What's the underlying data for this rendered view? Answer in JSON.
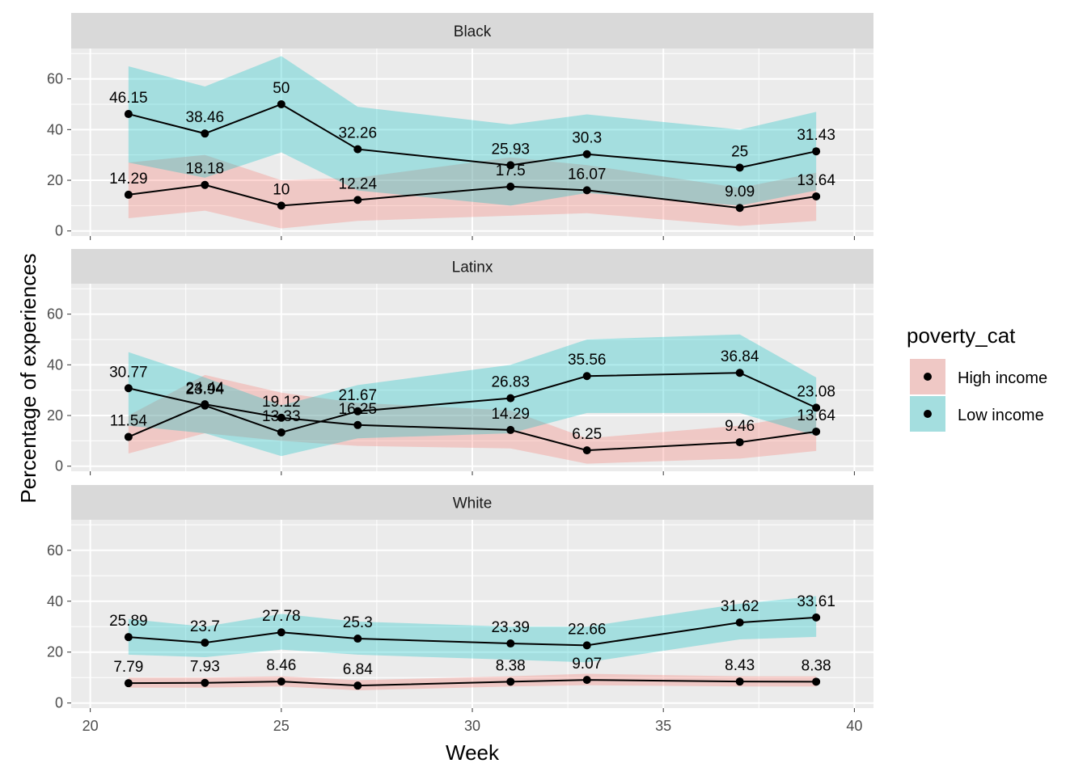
{
  "chart_data": {
    "type": "line",
    "xlabel": "Week",
    "ylabel": "Percentage of experiences",
    "xlim": [
      19.5,
      40.5
    ],
    "ylim": [
      -2,
      72
    ],
    "x_ticks": [
      20,
      25,
      30,
      35,
      40
    ],
    "y_ticks": [
      0,
      20,
      40,
      60
    ],
    "grid": true,
    "facet_by": "race",
    "legend": {
      "title": "poverty_cat",
      "placement": "right",
      "entries": [
        {
          "name": "High income",
          "color": "#F8766D"
        },
        {
          "name": "Low income",
          "color": "#00BFC4"
        }
      ]
    },
    "panels": [
      {
        "name": "Black",
        "series": [
          {
            "name": "High income",
            "points": [
              {
                "x": 21,
                "y": 14.29,
                "label": "14.29",
                "lo": 5,
                "hi": 27
              },
              {
                "x": 23,
                "y": 18.18,
                "label": "18.18",
                "lo": 8,
                "hi": 30
              },
              {
                "x": 25,
                "y": 10,
                "label": "10",
                "lo": 1,
                "hi": 20
              },
              {
                "x": 27,
                "y": 12.24,
                "label": "12.24",
                "lo": 4,
                "hi": 21
              },
              {
                "x": 31,
                "y": 17.5,
                "label": "17.5",
                "lo": 6,
                "hi": 29
              },
              {
                "x": 33,
                "y": 16.07,
                "label": "16.07",
                "lo": 7,
                "hi": 26
              },
              {
                "x": 37,
                "y": 9.09,
                "label": "9.09",
                "lo": 2,
                "hi": 17
              },
              {
                "x": 39,
                "y": 13.64,
                "label": "13.64",
                "lo": 4,
                "hi": 23
              }
            ]
          },
          {
            "name": "Low income",
            "points": [
              {
                "x": 21,
                "y": 46.15,
                "label": "46.15",
                "lo": 27,
                "hi": 65
              },
              {
                "x": 23,
                "y": 38.46,
                "label": "38.46",
                "lo": 21,
                "hi": 57
              },
              {
                "x": 25,
                "y": 50,
                "label": "50",
                "lo": 31,
                "hi": 69
              },
              {
                "x": 27,
                "y": 32.26,
                "label": "32.26",
                "lo": 16,
                "hi": 49
              },
              {
                "x": 31,
                "y": 25.93,
                "label": "25.93",
                "lo": 10,
                "hi": 42
              },
              {
                "x": 33,
                "y": 30.3,
                "label": "30.3",
                "lo": 15,
                "hi": 46
              },
              {
                "x": 37,
                "y": 25,
                "label": "25",
                "lo": 10,
                "hi": 40
              },
              {
                "x": 39,
                "y": 31.43,
                "label": "31.43",
                "lo": 16,
                "hi": 47
              }
            ]
          }
        ]
      },
      {
        "name": "Latinx",
        "series": [
          {
            "name": "High income",
            "points": [
              {
                "x": 21,
                "y": 11.54,
                "label": "11.54",
                "lo": 5,
                "hi": 20
              },
              {
                "x": 23,
                "y": 24.44,
                "label": "24.44",
                "lo": 13,
                "hi": 36
              },
              {
                "x": 25,
                "y": 19.12,
                "label": "19.12",
                "lo": 10,
                "hi": 29
              },
              {
                "x": 27,
                "y": 16.25,
                "label": "16.25",
                "lo": 8,
                "hi": 25
              },
              {
                "x": 31,
                "y": 14.29,
                "label": "14.29",
                "lo": 7,
                "hi": 22
              },
              {
                "x": 33,
                "y": 6.25,
                "label": "6.25",
                "lo": 1,
                "hi": 11
              },
              {
                "x": 37,
                "y": 9.46,
                "label": "9.46",
                "lo": 3,
                "hi": 16
              },
              {
                "x": 39,
                "y": 13.64,
                "label": "13.64",
                "lo": 6,
                "hi": 21
              }
            ]
          },
          {
            "name": "Low income",
            "points": [
              {
                "x": 21,
                "y": 30.77,
                "label": "30.77",
                "lo": 16,
                "hi": 45
              },
              {
                "x": 23,
                "y": 23.94,
                "label": "23.94",
                "lo": 13,
                "hi": 35
              },
              {
                "x": 25,
                "y": 13.33,
                "label": "13.33",
                "lo": 4,
                "hi": 24
              },
              {
                "x": 27,
                "y": 21.67,
                "label": "21.67",
                "lo": 11,
                "hi": 32
              },
              {
                "x": 31,
                "y": 26.83,
                "label": "26.83",
                "lo": 13,
                "hi": 40
              },
              {
                "x": 33,
                "y": 35.56,
                "label": "35.56",
                "lo": 21,
                "hi": 50
              },
              {
                "x": 37,
                "y": 36.84,
                "label": "36.84",
                "lo": 21,
                "hi": 52
              },
              {
                "x": 39,
                "y": 23.08,
                "label": "23.08",
                "lo": 12,
                "hi": 35
              }
            ]
          }
        ]
      },
      {
        "name": "White",
        "series": [
          {
            "name": "High income",
            "points": [
              {
                "x": 21,
                "y": 7.79,
                "label": "7.79",
                "lo": 6,
                "hi": 10
              },
              {
                "x": 23,
                "y": 7.93,
                "label": "7.93",
                "lo": 6,
                "hi": 10
              },
              {
                "x": 25,
                "y": 8.46,
                "label": "8.46",
                "lo": 6.5,
                "hi": 10.5
              },
              {
                "x": 27,
                "y": 6.84,
                "label": "6.84",
                "lo": 5,
                "hi": 9
              },
              {
                "x": 31,
                "y": 8.38,
                "label": "8.38",
                "lo": 6.5,
                "hi": 10.5
              },
              {
                "x": 33,
                "y": 9.07,
                "label": "9.07",
                "lo": 7,
                "hi": 11.5
              },
              {
                "x": 37,
                "y": 8.43,
                "label": "8.43",
                "lo": 6.5,
                "hi": 10.5
              },
              {
                "x": 39,
                "y": 8.38,
                "label": "8.38",
                "lo": 6.5,
                "hi": 10.5
              }
            ]
          },
          {
            "name": "Low income",
            "points": [
              {
                "x": 21,
                "y": 25.89,
                "label": "25.89",
                "lo": 19,
                "hi": 33
              },
              {
                "x": 23,
                "y": 23.7,
                "label": "23.7",
                "lo": 18,
                "hi": 30
              },
              {
                "x": 25,
                "y": 27.78,
                "label": "27.78",
                "lo": 21,
                "hi": 35
              },
              {
                "x": 27,
                "y": 25.3,
                "label": "25.3",
                "lo": 19,
                "hi": 32
              },
              {
                "x": 31,
                "y": 23.39,
                "label": "23.39",
                "lo": 17,
                "hi": 30
              },
              {
                "x": 33,
                "y": 22.66,
                "label": "22.66",
                "lo": 16,
                "hi": 30
              },
              {
                "x": 37,
                "y": 31.62,
                "label": "31.62",
                "lo": 25,
                "hi": 39
              },
              {
                "x": 39,
                "y": 33.61,
                "label": "33.61",
                "lo": 26,
                "hi": 42
              }
            ]
          }
        ]
      }
    ]
  }
}
